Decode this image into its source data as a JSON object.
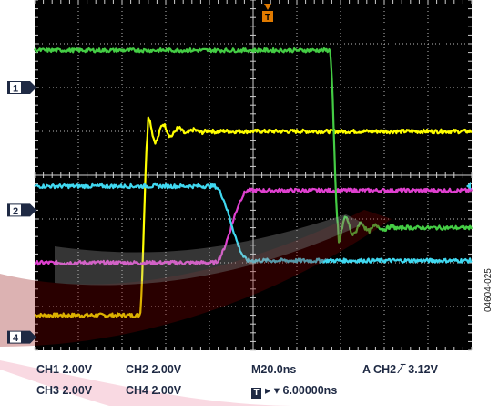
{
  "chart_data": {
    "type": "line",
    "title": "",
    "xlabel": "",
    "ylabel": "",
    "grid": true,
    "time_per_div_ns": 20,
    "volts_per_div": 2,
    "divisions": {
      "x": 10,
      "y": 8
    },
    "xlim_div": [
      0,
      10
    ],
    "ylim_div": [
      0,
      8
    ],
    "trigger_div": 5,
    "channel_markers": [
      "1",
      "2",
      "4"
    ],
    "trigger_marker": "T",
    "series": [
      {
        "color": "#ffff00",
        "levels_div": [
          0.8,
          5.0
        ],
        "transition_div": [
          2.4,
          2.6
        ],
        "marker_level_div": 0.8,
        "ringing": "rise"
      },
      {
        "color": "#e040d0",
        "levels_div": [
          2.0,
          3.65
        ],
        "transition_div": [
          4.1,
          4.9
        ],
        "marker_level_div": null,
        "ringing": "none"
      },
      {
        "color": "#40d8f0",
        "levels_div": [
          3.75,
          2.05
        ],
        "transition_div": [
          4.1,
          4.9
        ],
        "marker_level_div": null,
        "ringing": "none"
      },
      {
        "color": "#44cc44",
        "levels_div": [
          6.85,
          2.8
        ],
        "transition_div": [
          6.75,
          6.95
        ],
        "marker_level_div": 6.85,
        "ringing": "rise"
      }
    ]
  },
  "readouts": {
    "ch1": "CH1  2.00V",
    "ch2": "CH2  2.00V",
    "ch3": "CH3  2.00V",
    "ch4": "CH4  2.00V",
    "timebase": "M20.0ns",
    "trigger": "A  CH2 ∕‾  3.12V",
    "trigger_pos": "▸ ▾ 6.00000ns",
    "trigger_pos_box": "T"
  },
  "figure_code": "04604-025"
}
